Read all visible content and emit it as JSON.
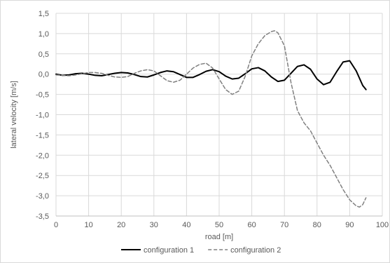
{
  "chart_data": {
    "type": "line",
    "title": "",
    "xlabel": "road [m]",
    "ylabel": "lateral velocity [m/s]",
    "xlim": [
      0,
      100
    ],
    "ylim": [
      -3.5,
      1.5
    ],
    "x_ticks": [
      0,
      10,
      20,
      30,
      40,
      50,
      60,
      70,
      80,
      90,
      100
    ],
    "x_tick_labels": [
      "0",
      "10",
      "20",
      "30",
      "40",
      "50",
      "60",
      "70",
      "80",
      "90",
      "100"
    ],
    "y_ticks": [
      1.5,
      1.0,
      0.5,
      0.0,
      -0.5,
      -1.0,
      -1.5,
      -2.0,
      -2.5,
      -3.0,
      -3.5
    ],
    "y_tick_labels": [
      "1,5",
      "1,0",
      "0,5",
      "0,0",
      "-0,5",
      "-1,0",
      "-1,5",
      "-2,0",
      "-2,5",
      "-3,0",
      "-3,5"
    ],
    "grid": true,
    "legend_position": "bottom",
    "series": [
      {
        "name": "configuration 1",
        "color": "#000000",
        "dash": "solid",
        "x": [
          0,
          2,
          4,
          6,
          8,
          10,
          12,
          14,
          16,
          18,
          20,
          22,
          24,
          26,
          28,
          30,
          32,
          34,
          36,
          38,
          40,
          42,
          44,
          46,
          48,
          50,
          52,
          54,
          56,
          58,
          60,
          62,
          64,
          66,
          68,
          70,
          72,
          74,
          76,
          78,
          80,
          82,
          84,
          86,
          88,
          90,
          92,
          94,
          95
        ],
        "y": [
          0.0,
          -0.03,
          -0.02,
          0.01,
          0.02,
          0.0,
          -0.03,
          -0.04,
          -0.01,
          0.02,
          0.04,
          0.03,
          -0.01,
          -0.06,
          -0.07,
          -0.02,
          0.04,
          0.08,
          0.06,
          -0.01,
          -0.08,
          -0.08,
          -0.01,
          0.07,
          0.11,
          0.06,
          -0.05,
          -0.12,
          -0.1,
          0.01,
          0.13,
          0.16,
          0.08,
          -0.07,
          -0.18,
          -0.15,
          0.02,
          0.19,
          0.23,
          0.12,
          -0.12,
          -0.26,
          -0.2,
          0.06,
          0.3,
          0.33,
          0.08,
          -0.28,
          -0.38
        ]
      },
      {
        "name": "configuration 2",
        "color": "#808080",
        "dash": "dashed",
        "x": [
          0,
          2,
          4,
          6,
          8,
          10,
          12,
          14,
          16,
          18,
          20,
          22,
          24,
          26,
          28,
          30,
          32,
          34,
          36,
          38,
          40,
          42,
          44,
          46,
          48,
          50,
          52,
          54,
          56,
          58,
          60,
          62,
          64,
          66,
          67,
          68,
          70,
          72,
          74,
          76,
          78,
          80,
          82,
          84,
          86,
          88,
          90,
          92,
          93,
          94,
          95
        ],
        "y": [
          -0.02,
          -0.03,
          -0.04,
          -0.02,
          0.01,
          0.04,
          0.04,
          0.02,
          -0.03,
          -0.07,
          -0.08,
          -0.06,
          0.02,
          0.08,
          0.11,
          0.08,
          -0.04,
          -0.16,
          -0.2,
          -0.15,
          0.0,
          0.15,
          0.24,
          0.27,
          0.15,
          -0.12,
          -0.38,
          -0.5,
          -0.42,
          -0.05,
          0.45,
          0.75,
          0.95,
          1.05,
          1.07,
          1.02,
          0.7,
          -0.2,
          -0.9,
          -1.2,
          -1.4,
          -1.7,
          -2.0,
          -2.25,
          -2.55,
          -2.85,
          -3.1,
          -3.25,
          -3.28,
          -3.22,
          -3.05
        ]
      }
    ]
  }
}
